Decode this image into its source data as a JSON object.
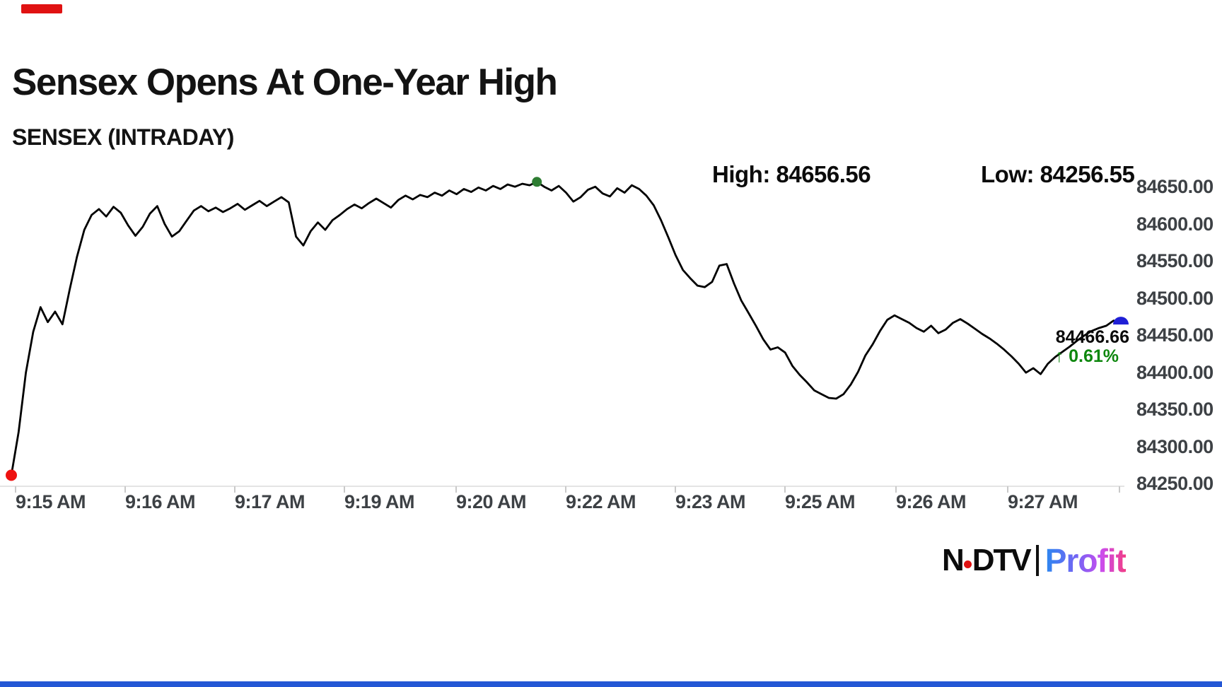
{
  "header": {
    "title": "Sensex Opens At One-Year High",
    "subtitle": "SENSEX (INTRADAY)"
  },
  "stats": {
    "high_label": "High:",
    "high_value": "84656.56",
    "low_label": "Low:",
    "low_value": "84256.55"
  },
  "chart_data": {
    "type": "line",
    "title": "SENSEX (INTRADAY)",
    "xlabel": "",
    "ylabel": "",
    "grid": "off",
    "legend": "none",
    "y_range": [
      84250,
      84650
    ],
    "x_tick_labels": [
      "9:15 AM",
      "9:16 AM",
      "9:17 AM",
      "9:19 AM",
      "9:20 AM",
      "9:22 AM",
      "9:23 AM",
      "9:25 AM",
      "9:26 AM",
      "9:27 AM"
    ],
    "y_tick_labels": [
      "84650.00",
      "84600.00",
      "84550.00",
      "84500.00",
      "84450.00",
      "84400.00",
      "84350.00",
      "84300.00",
      "84250.00"
    ],
    "series": [
      {
        "name": "SENSEX",
        "color": "#000000",
        "values": [
          84262,
          84320,
          84400,
          84455,
          84488,
          84468,
          84482,
          84465,
          84512,
          84556,
          84592,
          84612,
          84620,
          84610,
          84623,
          84615,
          84598,
          84584,
          84596,
          84614,
          84624,
          84600,
          84583,
          84590,
          84604,
          84618,
          84624,
          84617,
          84622,
          84616,
          84621,
          84627,
          84619,
          84625,
          84631,
          84624,
          84630,
          84636,
          84629,
          84583,
          84571,
          84590,
          84602,
          84592,
          84605,
          84612,
          84620,
          84626,
          84621,
          84628,
          84634,
          84628,
          84622,
          84632,
          84638,
          84633,
          84639,
          84636,
          84642,
          84638,
          84645,
          84640,
          84647,
          84643,
          84649,
          84645,
          84651,
          84647,
          84653,
          84650,
          84654,
          84652,
          84656.56,
          84650,
          84645,
          84651,
          84642,
          84630,
          84636,
          84646,
          84650,
          84641,
          84637,
          84648,
          84642,
          84652,
          84647,
          84638,
          84625,
          84605,
          84582,
          84558,
          84538,
          84527,
          84517,
          84515,
          84522,
          84544,
          84546,
          84520,
          84497,
          84480,
          84463,
          84445,
          84431,
          84434,
          84427,
          84409,
          84397,
          84387,
          84376,
          84371,
          84366,
          84365,
          84371,
          84384,
          84401,
          84423,
          84438,
          84456,
          84471,
          84477,
          84472,
          84467,
          84460,
          84455,
          84463,
          84453,
          84458,
          84467,
          84472,
          84466,
          84459,
          84452,
          84446,
          84439,
          84431,
          84422,
          84412,
          84400,
          84406,
          84398,
          84412,
          84421,
          84428,
          84435,
          84443,
          84450,
          84456,
          84460,
          84463,
          84470,
          84466.66
        ]
      }
    ],
    "markers": {
      "open": {
        "index": 0,
        "shape": "circle",
        "color": "#ee1211"
      },
      "high": {
        "index": 72,
        "shape": "circle",
        "color": "#2e7d32"
      },
      "last": {
        "index": 152,
        "shape": "semicircle",
        "color": "#1f1fd6"
      }
    },
    "annotations": {
      "high": 84656.56,
      "low": 84256.55,
      "last": 84466.66,
      "last_price_text": "84466.66",
      "change_text": "↑ 0.61%",
      "change_color": "#0e870e"
    },
    "axis_colors": {
      "line": "#e4e4e4",
      "tick": "#c9c9c9",
      "label": "#3d4145"
    }
  },
  "logo": {
    "ndtv_left": "N",
    "ndtv_right": "DTV",
    "profit": "Profit",
    "dot_color": "#e01212",
    "profit_gradient": [
      "#2b87f0",
      "#7a62f4",
      "#cb4ded",
      "#f13c86"
    ]
  },
  "decor": {
    "top_badge_color": "#e01212",
    "bottom_bar_color": "#2457d5"
  }
}
